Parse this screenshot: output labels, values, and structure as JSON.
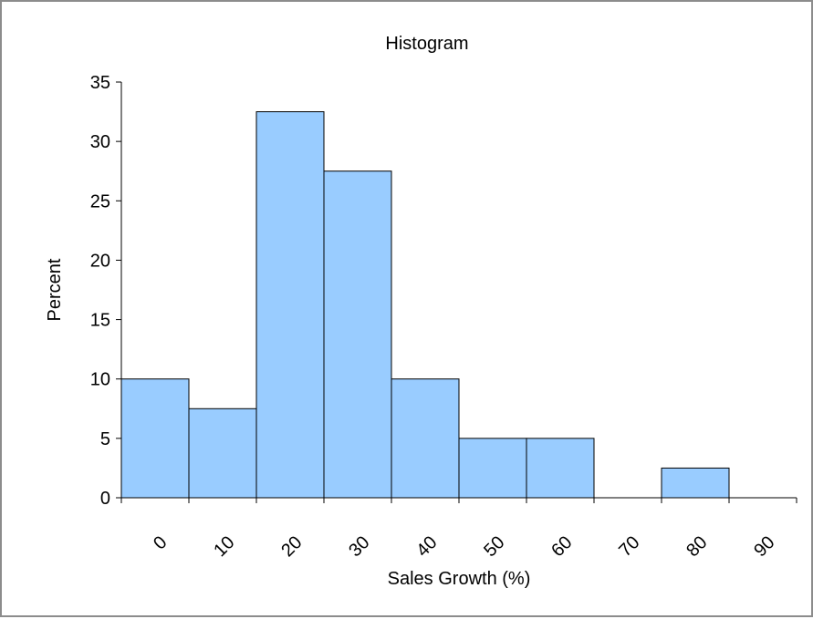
{
  "chart_data": {
    "type": "bar",
    "title": "Histogram",
    "xlabel": "Sales Growth (%)",
    "ylabel": "Percent",
    "categories": [
      "0",
      "10",
      "20",
      "30",
      "40",
      "50",
      "60",
      "70",
      "80",
      "90"
    ],
    "values": [
      10,
      7.5,
      32.5,
      27.5,
      10,
      5,
      5,
      0,
      2.5,
      0
    ],
    "ylim": [
      0,
      35
    ],
    "yticks": [
      0,
      5,
      10,
      15,
      20,
      25,
      30,
      35
    ],
    "grid": false,
    "legend": "none",
    "bar_color": "#99CCFF",
    "bar_edge_color": "#000000",
    "tick_rotation_degrees": -45
  }
}
